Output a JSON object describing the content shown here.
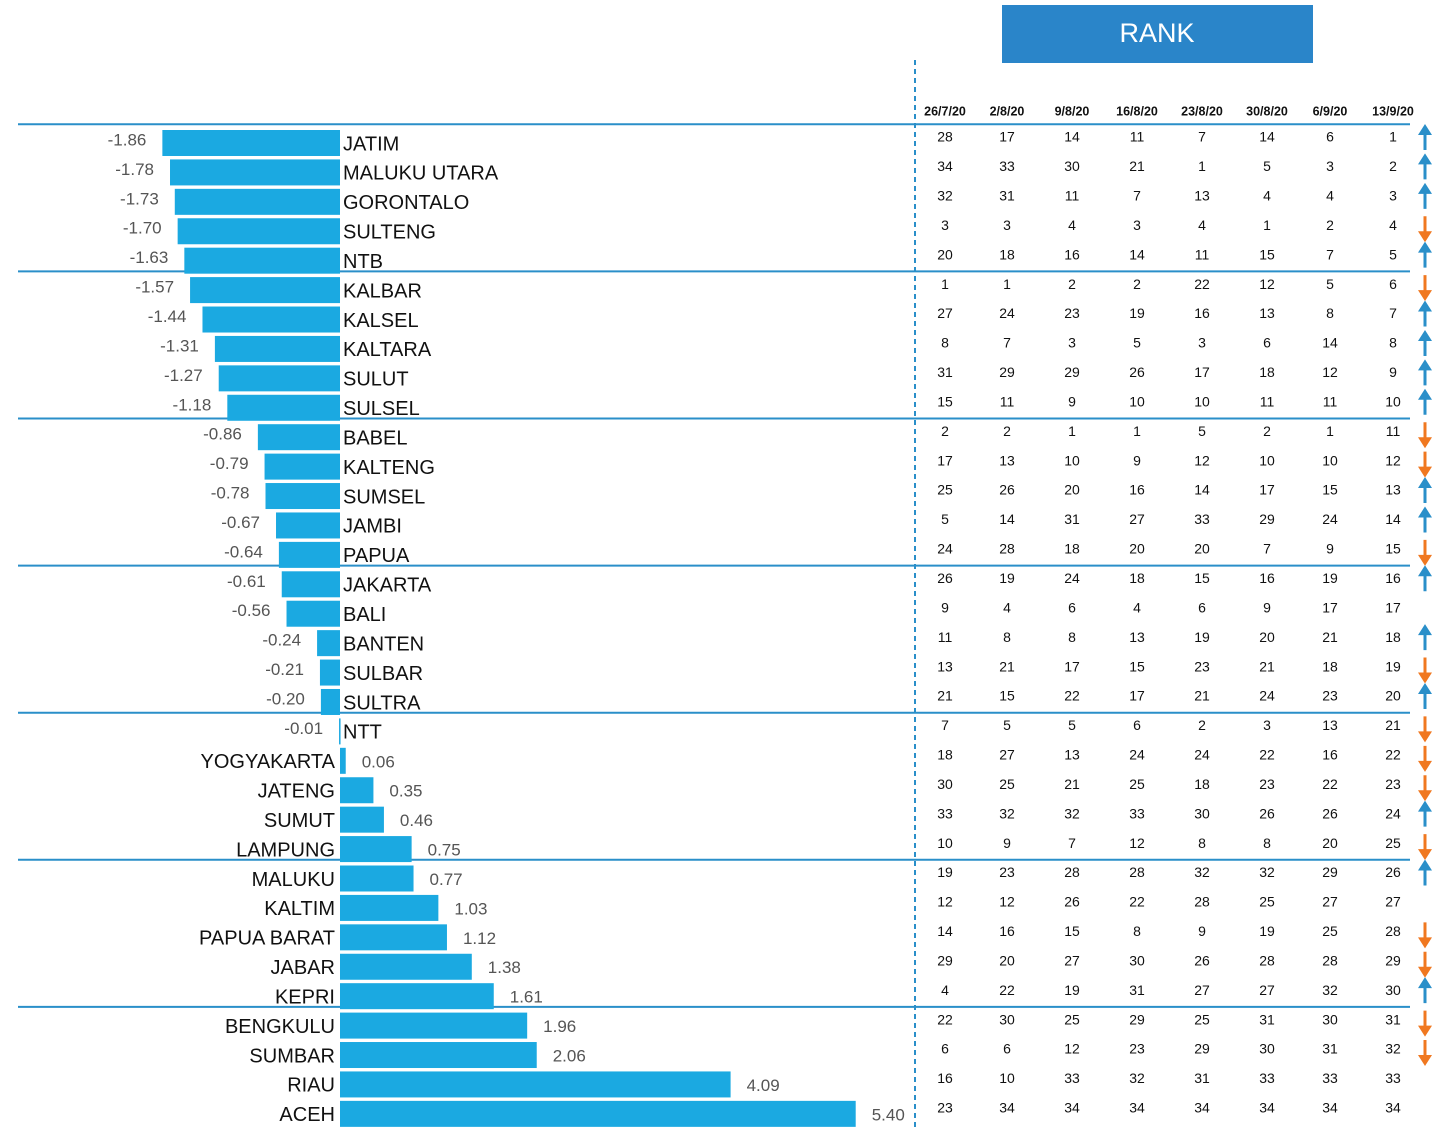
{
  "chart_data": {
    "type": "hbar-diverging",
    "color": "#1ba9e1",
    "categories": [
      "JATIM",
      "MALUKU UTARA",
      "GORONTALO",
      "SULTENG",
      "NTB",
      "KALBAR",
      "KALSEL",
      "KALTARA",
      "SULUT",
      "SULSEL",
      "BABEL",
      "KALTENG",
      "SUMSEL",
      "JAMBI",
      "PAPUA",
      "JAKARTA",
      "BALI",
      "BANTEN",
      "SULBAR",
      "SULTRA",
      "NTT",
      "YOGYAKARTA",
      "JATENG",
      "SUMUT",
      "LAMPUNG",
      "MALUKU",
      "KALTIM",
      "PAPUA BARAT",
      "JABAR",
      "KEPRI",
      "BENGKULU",
      "SUMBAR",
      "RIAU",
      "ACEH"
    ],
    "values": [
      -1.86,
      -1.78,
      -1.73,
      -1.7,
      -1.63,
      -1.57,
      -1.44,
      -1.31,
      -1.27,
      -1.18,
      -0.86,
      -0.79,
      -0.78,
      -0.67,
      -0.64,
      -0.61,
      -0.56,
      -0.24,
      -0.21,
      -0.2,
      -0.01,
      0.06,
      0.35,
      0.46,
      0.75,
      0.77,
      1.03,
      1.12,
      1.38,
      1.61,
      1.96,
      2.06,
      4.09,
      5.4
    ],
    "value_labels": [
      "-1.86",
      "-1.78",
      "-1.73",
      "-1.70",
      "-1.63",
      "-1.57",
      "-1.44",
      "-1.31",
      "-1.27",
      "-1.18",
      "-0.86",
      "-0.79",
      "-0.78",
      "-0.67",
      "-0.64",
      "-0.61",
      "-0.56",
      "-0.24",
      "-0.21",
      "-0.20",
      "-0.01",
      "0.06",
      "0.35",
      "0.46",
      "0.75",
      "0.77",
      "1.03",
      "1.12",
      "1.38",
      "1.61",
      "1.96",
      "2.06",
      "4.09",
      "5.40"
    ]
  },
  "rank_table": {
    "title": "RANK",
    "columns": [
      "26/7/20",
      "2/8/20",
      "9/8/20",
      "16/8/20",
      "23/8/20",
      "30/8/20",
      "6/9/20",
      "13/9/20"
    ],
    "up_color": "#2a8fc9",
    "down_color": "#f07820",
    "rows": [
      [
        28,
        17,
        14,
        11,
        7,
        14,
        6,
        1
      ],
      [
        34,
        33,
        30,
        21,
        1,
        5,
        3,
        2
      ],
      [
        32,
        31,
        11,
        7,
        13,
        4,
        4,
        3
      ],
      [
        3,
        3,
        4,
        3,
        4,
        1,
        2,
        4
      ],
      [
        20,
        18,
        16,
        14,
        11,
        15,
        7,
        5
      ],
      [
        1,
        1,
        2,
        2,
        22,
        12,
        5,
        6
      ],
      [
        27,
        24,
        23,
        19,
        16,
        13,
        8,
        7
      ],
      [
        8,
        7,
        3,
        5,
        3,
        6,
        14,
        8
      ],
      [
        31,
        29,
        29,
        26,
        17,
        18,
        12,
        9
      ],
      [
        15,
        11,
        9,
        10,
        10,
        11,
        11,
        10
      ],
      [
        2,
        2,
        1,
        1,
        5,
        2,
        1,
        11
      ],
      [
        17,
        13,
        10,
        9,
        12,
        10,
        10,
        12
      ],
      [
        25,
        26,
        20,
        16,
        14,
        17,
        15,
        13
      ],
      [
        5,
        14,
        31,
        27,
        33,
        29,
        24,
        14
      ],
      [
        24,
        28,
        18,
        20,
        20,
        7,
        9,
        15
      ],
      [
        26,
        19,
        24,
        18,
        15,
        16,
        19,
        16
      ],
      [
        9,
        4,
        6,
        4,
        6,
        9,
        17,
        17
      ],
      [
        11,
        8,
        8,
        13,
        19,
        20,
        21,
        18
      ],
      [
        13,
        21,
        17,
        15,
        23,
        21,
        18,
        19
      ],
      [
        21,
        15,
        22,
        17,
        21,
        24,
        23,
        20
      ],
      [
        7,
        5,
        5,
        6,
        2,
        3,
        13,
        21
      ],
      [
        18,
        27,
        13,
        24,
        24,
        22,
        16,
        22
      ],
      [
        30,
        25,
        21,
        25,
        18,
        23,
        22,
        23
      ],
      [
        33,
        32,
        32,
        33,
        30,
        26,
        26,
        24
      ],
      [
        10,
        9,
        7,
        12,
        8,
        8,
        20,
        25
      ],
      [
        19,
        23,
        28,
        28,
        32,
        32,
        29,
        26
      ],
      [
        12,
        12,
        26,
        22,
        28,
        25,
        27,
        27
      ],
      [
        14,
        16,
        15,
        8,
        9,
        19,
        25,
        28
      ],
      [
        29,
        20,
        27,
        30,
        26,
        28,
        28,
        29
      ],
      [
        4,
        22,
        19,
        31,
        27,
        27,
        32,
        30
      ],
      [
        22,
        30,
        25,
        29,
        25,
        31,
        30,
        31
      ],
      [
        6,
        6,
        12,
        23,
        29,
        30,
        31,
        32
      ],
      [
        16,
        10,
        33,
        32,
        31,
        33,
        33,
        33
      ],
      [
        23,
        34,
        34,
        34,
        34,
        34,
        34,
        34
      ]
    ],
    "trend": [
      "up",
      "up",
      "up",
      "down",
      "up",
      "down",
      "up",
      "up",
      "up",
      "up",
      "down",
      "down",
      "up",
      "up",
      "down",
      "up",
      "none",
      "up",
      "down",
      "up",
      "down",
      "down",
      "down",
      "up",
      "down",
      "up",
      "none",
      "down",
      "down",
      "up",
      "down",
      "down",
      "none",
      "none"
    ]
  }
}
